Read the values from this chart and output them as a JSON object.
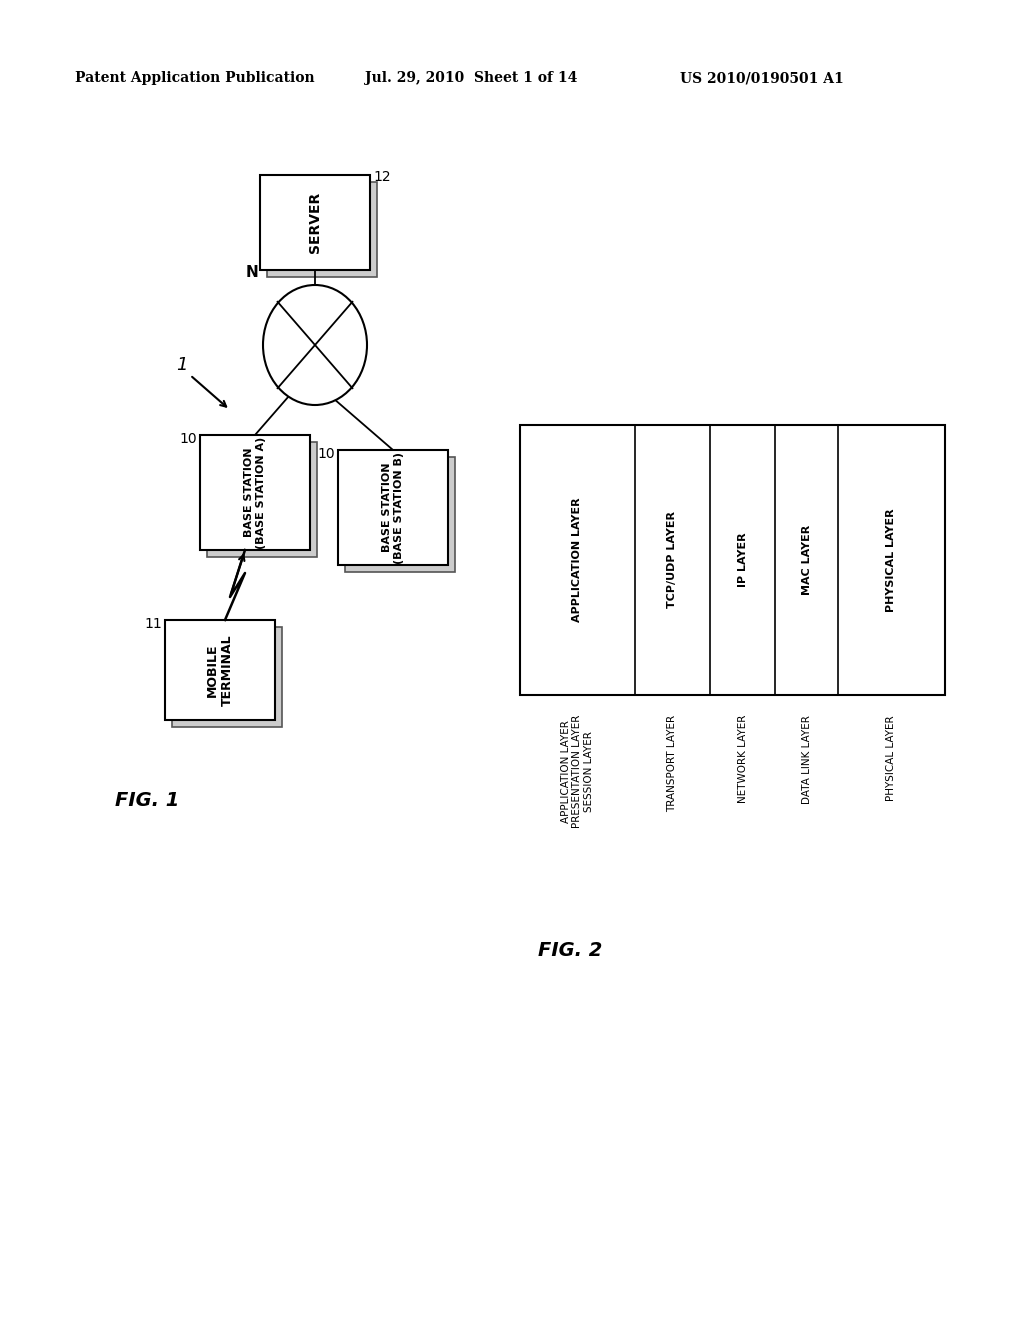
{
  "header_left": "Patent Application Publication",
  "header_mid": "Jul. 29, 2010  Sheet 1 of 14",
  "header_right": "US 2010/0190501 A1",
  "fig1_label": "FIG. 1",
  "fig2_label": "FIG. 2",
  "server_label": "SERVER",
  "server_num": "12",
  "network_label": "N",
  "diagram_num": "1",
  "base_a_label": "BASE STATION\n(BASE STATION A)",
  "base_b_label": "BASE STATION\n(BASE STATION B)",
  "base_num": "10",
  "mobile_label": "MOBILE\nTERMINAL",
  "mobile_num": "11",
  "osi_left_labels": [
    "APPLICATION LAYER\nPRESENTATION LAYER\nSESSION LAYER",
    "TRANSPORT LAYER",
    "NETWORK LAYER",
    "DATA LINK LAYER",
    "PHYSICAL LAYER"
  ],
  "osi_right_labels": [
    "APPLICATION LAYER",
    "TCP/UDP LAYER",
    "IP LAYER",
    "MAC LAYER",
    "PHYSICAL LAYER"
  ],
  "bg_color": "#ffffff",
  "fg_color": "#000000"
}
